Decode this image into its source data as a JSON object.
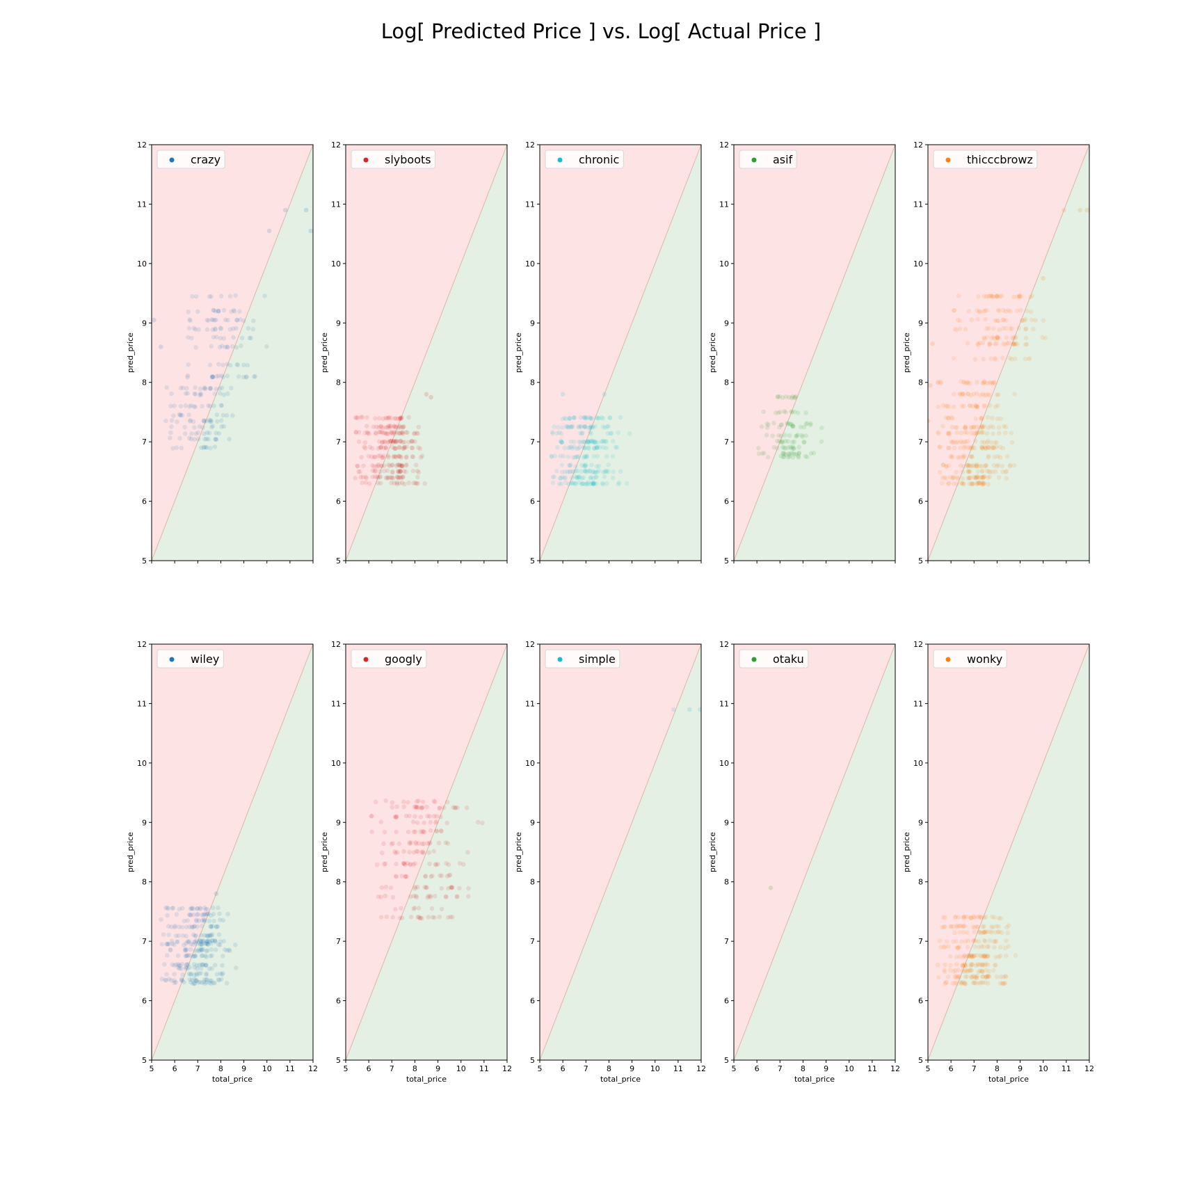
{
  "figure": {
    "title": "Log[ Predicted Price ] vs. Log[ Actual Price ]"
  },
  "shared": {
    "xlabel": "total_price",
    "ylabel": "pred_price",
    "xlim": [
      5,
      12
    ],
    "ylim": [
      5,
      12
    ],
    "xticks": [
      "5",
      "6",
      "7",
      "8",
      "9",
      "10",
      "11",
      "12"
    ],
    "yticks": [
      "5",
      "6",
      "7",
      "8",
      "9",
      "10",
      "11",
      "12"
    ],
    "region_colors": {
      "over": "#fde3e4",
      "under": "#e3f0e3"
    },
    "diagonal_color": "#d9b8a8",
    "legend_position": "upper-left",
    "point_opacity": 0.12
  },
  "chart_data": [
    {
      "type": "scatter",
      "name": "crazy",
      "color": "#1f77b4",
      "row": 0,
      "col": 0,
      "clusters": [
        {
          "levels": [
            6.9,
            7.05,
            7.15,
            7.25,
            7.35,
            7.45,
            7.6,
            7.8,
            7.9
          ],
          "xrange": [
            5.6,
            9.1
          ],
          "n": 110
        },
        {
          "levels": [
            8.1,
            8.3,
            8.6,
            8.75,
            8.9,
            9.05,
            9.2,
            9.45
          ],
          "xrange": [
            6.5,
            10.4
          ],
          "n": 100
        }
      ],
      "points": [
        [
          10.8,
          10.9
        ],
        [
          11.7,
          10.9
        ],
        [
          10.1,
          10.55
        ],
        [
          11.9,
          10.55
        ],
        [
          5.1,
          9.05
        ],
        [
          5.4,
          8.6
        ]
      ]
    },
    {
      "type": "scatter",
      "name": "slyboots",
      "color": "#d62728",
      "row": 0,
      "col": 1,
      "clusters": [
        {
          "levels": [
            6.3,
            6.4,
            6.5,
            6.6,
            6.75,
            6.9,
            7.0,
            7.15,
            7.25,
            7.4
          ],
          "xrange": [
            5.4,
            9.0
          ],
          "n": 260
        }
      ],
      "points": [
        [
          8.5,
          7.8
        ],
        [
          8.7,
          7.75
        ]
      ]
    },
    {
      "type": "scatter",
      "name": "chronic",
      "color": "#17becf",
      "row": 0,
      "col": 2,
      "clusters": [
        {
          "levels": [
            6.3,
            6.4,
            6.5,
            6.6,
            6.75,
            6.9,
            7.0,
            7.15,
            7.25,
            7.4
          ],
          "xrange": [
            5.5,
            9.2
          ],
          "n": 250
        }
      ],
      "points": [
        [
          6.0,
          7.8
        ],
        [
          7.8,
          7.8
        ]
      ]
    },
    {
      "type": "scatter",
      "name": "asif",
      "color": "#2ca02c",
      "row": 0,
      "col": 3,
      "clusters": [
        {
          "levels": [
            6.75,
            6.8,
            6.9,
            7.0,
            7.1,
            7.25,
            7.3,
            7.5,
            7.75
          ],
          "xrange": [
            6.0,
            9.2
          ],
          "n": 110
        }
      ],
      "points": []
    },
    {
      "type": "scatter",
      "name": "thicccbrowz",
      "color": "#ff7f0e",
      "row": 0,
      "col": 4,
      "clusters": [
        {
          "levels": [
            6.3,
            6.4,
            6.5,
            6.6,
            6.75,
            6.9,
            7.0,
            7.15,
            7.25,
            7.4,
            7.6,
            7.8,
            8.0
          ],
          "xrange": [
            5.4,
            9.2
          ],
          "n": 300
        },
        {
          "levels": [
            8.4,
            8.65,
            8.75,
            8.9,
            9.05,
            9.2,
            9.45
          ],
          "xrange": [
            6.0,
            10.9
          ],
          "n": 130
        }
      ],
      "points": [
        [
          10.9,
          10.9
        ],
        [
          11.6,
          10.9
        ],
        [
          11.9,
          10.9
        ],
        [
          10.0,
          9.75
        ],
        [
          5.2,
          8.65
        ],
        [
          5.1,
          7.95
        ],
        [
          5.0,
          7.35
        ],
        [
          9.4,
          8.4
        ]
      ]
    },
    {
      "type": "scatter",
      "name": "wiley",
      "color": "#1f77b4",
      "row": 1,
      "col": 0,
      "clusters": [
        {
          "levels": [
            6.3,
            6.35,
            6.45,
            6.55,
            6.6,
            6.75,
            6.85,
            6.95,
            7.0,
            7.1,
            7.25,
            7.35,
            7.45,
            7.55
          ],
          "xrange": [
            5.4,
            9.1
          ],
          "n": 280
        }
      ],
      "points": [
        [
          7.8,
          7.8
        ]
      ]
    },
    {
      "type": "scatter",
      "name": "googly",
      "color": "#d62728",
      "row": 1,
      "col": 1,
      "clusters": [
        {
          "levels": [
            7.4,
            7.55,
            7.75,
            7.9,
            8.1,
            8.3,
            8.5,
            8.65,
            8.85,
            9.0,
            9.1,
            9.25,
            9.35
          ],
          "xrange": [
            6.0,
            11.4
          ],
          "n": 200
        }
      ],
      "points": []
    },
    {
      "type": "scatter",
      "name": "simple",
      "color": "#17becf",
      "row": 1,
      "col": 2,
      "clusters": [],
      "points": [
        [
          10.8,
          10.9
        ],
        [
          11.5,
          10.9
        ],
        [
          11.95,
          10.9
        ]
      ]
    },
    {
      "type": "scatter",
      "name": "otaku",
      "color": "#2ca02c",
      "row": 1,
      "col": 3,
      "clusters": [],
      "points": [
        [
          6.6,
          7.9
        ]
      ]
    },
    {
      "type": "scatter",
      "name": "wonky",
      "color": "#ff7f0e",
      "row": 1,
      "col": 4,
      "clusters": [
        {
          "levels": [
            6.3,
            6.4,
            6.5,
            6.6,
            6.75,
            6.9,
            7.0,
            7.15,
            7.25,
            7.4
          ],
          "xrange": [
            5.4,
            9.3
          ],
          "n": 250
        }
      ],
      "points": []
    }
  ]
}
